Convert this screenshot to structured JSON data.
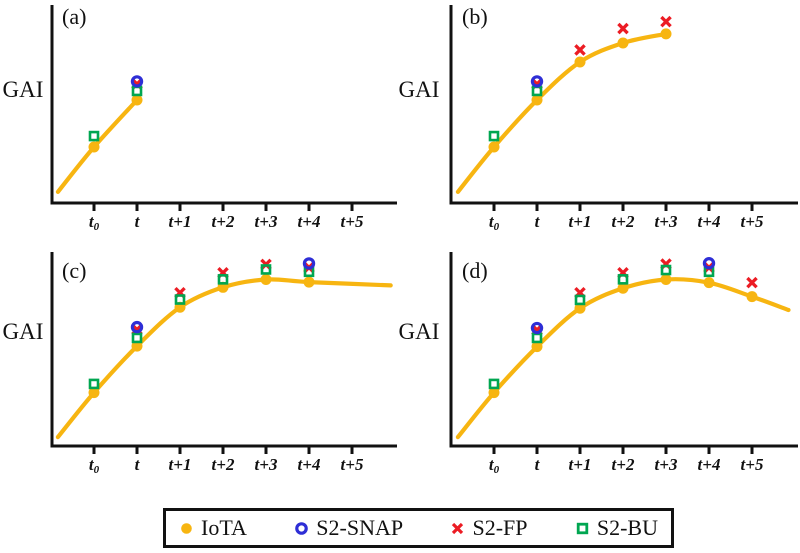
{
  "figure": {
    "background": "#ffffff",
    "axis_color": "#111111",
    "ylabel": "GAI",
    "x_tick_labels": [
      "t_0",
      "t",
      "t+1",
      "t+2",
      "t+3",
      "t+4",
      "t+5"
    ],
    "y_axis_note": "no numeric scale; values are relative GAI in arbitrary units 0-1"
  },
  "legend": {
    "items": [
      {
        "label": "IoTA",
        "marker": "filled-circle",
        "color": "#F7B511"
      },
      {
        "label": "S2-SNAP",
        "marker": "open-circle",
        "color": "#2E2ED6"
      },
      {
        "label": "S2-FP",
        "marker": "x-mark",
        "color": "#EC1C24"
      },
      {
        "label": "S2-BU",
        "marker": "open-square",
        "color": "#00A651"
      }
    ]
  },
  "chart_data": [
    {
      "type": "line",
      "panel_label": "(a)",
      "ylabel": "GAI",
      "xlabel": "",
      "categories": [
        "t_0",
        "t",
        "t+1",
        "t+2",
        "t+3",
        "t+4",
        "t+5"
      ],
      "series": [
        {
          "name": "IoTA",
          "points": [
            [
              0,
              0.283
            ],
            [
              1,
              0.52
            ]
          ]
        },
        {
          "name": "S2-SNAP",
          "points": [
            [
              1,
              0.614
            ]
          ]
        },
        {
          "name": "S2-FP",
          "points": [
            [
              1,
              0.601
            ]
          ]
        },
        {
          "name": "S2-BU",
          "points": [
            [
              0,
              0.338
            ],
            [
              1,
              0.566
            ]
          ]
        }
      ],
      "trend_curve": {
        "series": "IoTA",
        "anchors": [
          [
            -0.84,
            0.056
          ],
          [
            0,
            0.283
          ],
          [
            1,
            0.52
          ]
        ]
      }
    },
    {
      "type": "line",
      "panel_label": "(b)",
      "ylabel": "GAI",
      "xlabel": "",
      "categories": [
        "t_0",
        "t",
        "t+1",
        "t+2",
        "t+3",
        "t+4",
        "t+5"
      ],
      "series": [
        {
          "name": "IoTA",
          "points": [
            [
              0,
              0.283
            ],
            [
              1,
              0.52
            ],
            [
              2,
              0.712
            ],
            [
              3,
              0.808
            ],
            [
              4,
              0.854
            ]
          ]
        },
        {
          "name": "S2-SNAP",
          "points": [
            [
              1,
              0.614
            ]
          ]
        },
        {
          "name": "S2-FP",
          "points": [
            [
              1,
              0.601
            ],
            [
              2,
              0.773
            ],
            [
              3,
              0.881
            ],
            [
              4,
              0.916
            ]
          ]
        },
        {
          "name": "S2-BU",
          "points": [
            [
              0,
              0.338
            ],
            [
              1,
              0.566
            ]
          ]
        }
      ],
      "trend_curve": {
        "series": "IoTA",
        "anchors": [
          [
            -0.84,
            0.056
          ],
          [
            0,
            0.283
          ],
          [
            1,
            0.52
          ],
          [
            2,
            0.712
          ],
          [
            3,
            0.808
          ],
          [
            4,
            0.854
          ]
        ]
      }
    },
    {
      "type": "line",
      "panel_label": "(c)",
      "ylabel": "GAI",
      "xlabel": "",
      "categories": [
        "t_0",
        "t",
        "t+1",
        "t+2",
        "t+3",
        "t+4",
        "t+5"
      ],
      "series": [
        {
          "name": "IoTA",
          "points": [
            [
              0,
              0.275
            ],
            [
              1,
              0.515
            ],
            [
              2,
              0.715
            ],
            [
              3,
              0.818
            ],
            [
              4,
              0.858
            ],
            [
              5,
              0.845
            ]
          ]
        },
        {
          "name": "S2-SNAP",
          "points": [
            [
              1,
              0.613
            ],
            [
              5,
              0.941
            ]
          ]
        },
        {
          "name": "S2-FP",
          "points": [
            [
              1,
              0.6
            ],
            [
              2,
              0.79
            ],
            [
              3,
              0.893
            ],
            [
              4,
              0.936
            ],
            [
              5,
              0.92
            ]
          ]
        },
        {
          "name": "S2-BU",
          "points": [
            [
              0,
              0.32
            ],
            [
              1,
              0.557
            ],
            [
              2,
              0.755
            ],
            [
              3,
              0.859
            ],
            [
              4,
              0.91
            ],
            [
              5,
              0.898
            ]
          ]
        }
      ],
      "trend_curve": {
        "series": "IoTA",
        "anchors": [
          [
            -0.84,
            0.046
          ],
          [
            0,
            0.275
          ],
          [
            1,
            0.515
          ],
          [
            2,
            0.715
          ],
          [
            3,
            0.818
          ],
          [
            4,
            0.858
          ],
          [
            5,
            0.845
          ],
          [
            6.9,
            0.828
          ]
        ]
      }
    },
    {
      "type": "line",
      "panel_label": "(d)",
      "ylabel": "GAI",
      "xlabel": "",
      "categories": [
        "t_0",
        "t",
        "t+1",
        "t+2",
        "t+3",
        "t+4",
        "t+5"
      ],
      "series": [
        {
          "name": "IoTA",
          "points": [
            [
              0,
              0.275
            ],
            [
              1,
              0.512
            ],
            [
              2,
              0.71
            ],
            [
              3,
              0.813
            ],
            [
              4,
              0.858
            ],
            [
              5,
              0.842
            ],
            [
              6,
              0.77
            ]
          ]
        },
        {
          "name": "S2-SNAP",
          "points": [
            [
              1,
              0.608
            ],
            [
              5,
              0.942
            ]
          ]
        },
        {
          "name": "S2-FP",
          "points": [
            [
              1,
              0.598
            ],
            [
              2,
              0.79
            ],
            [
              3,
              0.893
            ],
            [
              4,
              0.938
            ],
            [
              5,
              0.92
            ],
            [
              6,
              0.842
            ]
          ]
        },
        {
          "name": "S2-BU",
          "points": [
            [
              0,
              0.32
            ],
            [
              1,
              0.557
            ],
            [
              2,
              0.753
            ],
            [
              3,
              0.859
            ],
            [
              4,
              0.907
            ],
            [
              5,
              0.898
            ]
          ]
        }
      ],
      "trend_curve": {
        "series": "IoTA",
        "anchors": [
          [
            -0.84,
            0.046
          ],
          [
            0,
            0.275
          ],
          [
            1,
            0.512
          ],
          [
            2,
            0.71
          ],
          [
            3,
            0.813
          ],
          [
            4,
            0.858
          ],
          [
            5,
            0.842
          ],
          [
            6,
            0.77
          ],
          [
            6.85,
            0.701
          ]
        ]
      }
    }
  ]
}
